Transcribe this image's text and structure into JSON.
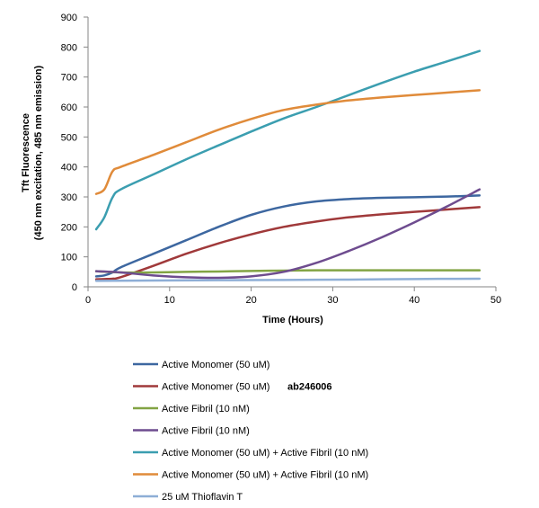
{
  "chart_data": {
    "type": "line",
    "title": "",
    "xlabel": "Time (Hours)",
    "ylabel_line1": "Tft Fluorescence",
    "ylabel_line2": "(450 nm excitation, 485 nm emission)",
    "xlim": [
      0,
      50
    ],
    "ylim": [
      0,
      900
    ],
    "xticks": [
      0,
      10,
      20,
      30,
      40,
      50
    ],
    "yticks": [
      0,
      100,
      200,
      300,
      400,
      500,
      600,
      700,
      800,
      900
    ],
    "grid": false,
    "legend_position": "bottom",
    "series": [
      {
        "name": "Active Monomer (50 uM)",
        "extra": "",
        "color": "#3d67a0",
        "points": [
          [
            1,
            35
          ],
          [
            2,
            38
          ],
          [
            3,
            48
          ],
          [
            4,
            65
          ],
          [
            8,
            110
          ],
          [
            12,
            155
          ],
          [
            16,
            200
          ],
          [
            20,
            240
          ],
          [
            24,
            268
          ],
          [
            28,
            285
          ],
          [
            32,
            293
          ],
          [
            36,
            297
          ],
          [
            40,
            299
          ],
          [
            44,
            301
          ],
          [
            48,
            305
          ]
        ]
      },
      {
        "name": "Active Monomer (50 uM)",
        "extra": "ab246006",
        "color": "#a0393a",
        "points": [
          [
            1,
            25
          ],
          [
            2,
            26
          ],
          [
            3,
            27
          ],
          [
            4,
            32
          ],
          [
            8,
            70
          ],
          [
            12,
            110
          ],
          [
            16,
            145
          ],
          [
            20,
            175
          ],
          [
            24,
            200
          ],
          [
            28,
            218
          ],
          [
            32,
            232
          ],
          [
            36,
            242
          ],
          [
            40,
            250
          ],
          [
            44,
            258
          ],
          [
            48,
            266
          ]
        ]
      },
      {
        "name": "Active Fibril (10 nM)",
        "extra": "",
        "color": "#82a444",
        "points": [
          [
            1,
            52
          ],
          [
            4,
            48
          ],
          [
            8,
            48
          ],
          [
            12,
            50
          ],
          [
            16,
            51
          ],
          [
            20,
            53
          ],
          [
            24,
            54
          ],
          [
            28,
            55
          ],
          [
            32,
            55
          ],
          [
            36,
            55
          ],
          [
            40,
            55
          ],
          [
            44,
            55
          ],
          [
            48,
            55
          ]
        ]
      },
      {
        "name": "Active Fibril (10 nM)",
        "extra": "",
        "color": "#6e4c8f",
        "points": [
          [
            1,
            52
          ],
          [
            4,
            48
          ],
          [
            8,
            38
          ],
          [
            12,
            32
          ],
          [
            16,
            30
          ],
          [
            20,
            35
          ],
          [
            24,
            50
          ],
          [
            28,
            80
          ],
          [
            32,
            120
          ],
          [
            36,
            165
          ],
          [
            40,
            215
          ],
          [
            44,
            268
          ],
          [
            48,
            325
          ]
        ]
      },
      {
        "name": "Active Monomer (50 uM) + Active Fibril (10 nM)",
        "extra": "",
        "color": "#3b9eb0",
        "points": [
          [
            1,
            192
          ],
          [
            2,
            232
          ],
          [
            3,
            298
          ],
          [
            4,
            325
          ],
          [
            8,
            375
          ],
          [
            12,
            425
          ],
          [
            16,
            472
          ],
          [
            20,
            518
          ],
          [
            24,
            562
          ],
          [
            28,
            600
          ],
          [
            32,
            640
          ],
          [
            36,
            680
          ],
          [
            40,
            718
          ],
          [
            44,
            752
          ],
          [
            48,
            787
          ]
        ]
      },
      {
        "name": "Active Monomer (50 uM) + Active Fibril (10 nM)",
        "extra": "",
        "color": "#e08b3a",
        "points": [
          [
            1,
            310
          ],
          [
            2,
            325
          ],
          [
            3,
            385
          ],
          [
            4,
            400
          ],
          [
            8,
            440
          ],
          [
            12,
            482
          ],
          [
            16,
            524
          ],
          [
            20,
            560
          ],
          [
            24,
            590
          ],
          [
            28,
            608
          ],
          [
            32,
            622
          ],
          [
            36,
            632
          ],
          [
            40,
            640
          ],
          [
            44,
            648
          ],
          [
            48,
            656
          ]
        ]
      },
      {
        "name": "25 uM Thioflavin T",
        "extra": "",
        "color": "#8eaed6",
        "points": [
          [
            1,
            20
          ],
          [
            8,
            21
          ],
          [
            16,
            22
          ],
          [
            24,
            23
          ],
          [
            32,
            24
          ],
          [
            40,
            26
          ],
          [
            48,
            27
          ]
        ]
      }
    ]
  }
}
